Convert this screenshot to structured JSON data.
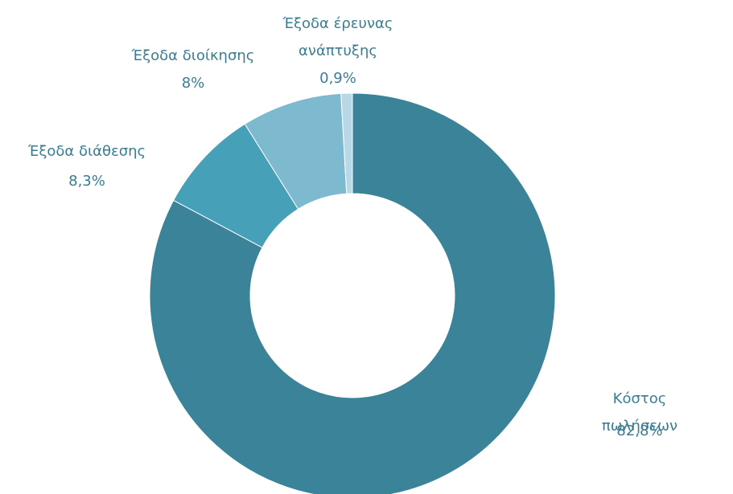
{
  "chart_data": {
    "type": "donut",
    "categories": [
      "Κόστος πωλήσεων",
      "Έξοδα διάθεσης",
      "Έξοδα διοίκησης",
      "Έξοδα έρευνας\nανάπτυξης"
    ],
    "values": [
      82.8,
      8.3,
      8,
      0.9
    ],
    "value_labels": [
      "82,8%",
      "8,3%",
      "8%",
      "0,9%"
    ],
    "colors": [
      "#3a8399",
      "#46a0b8",
      "#7db9cf",
      "#b8d8e6"
    ]
  }
}
